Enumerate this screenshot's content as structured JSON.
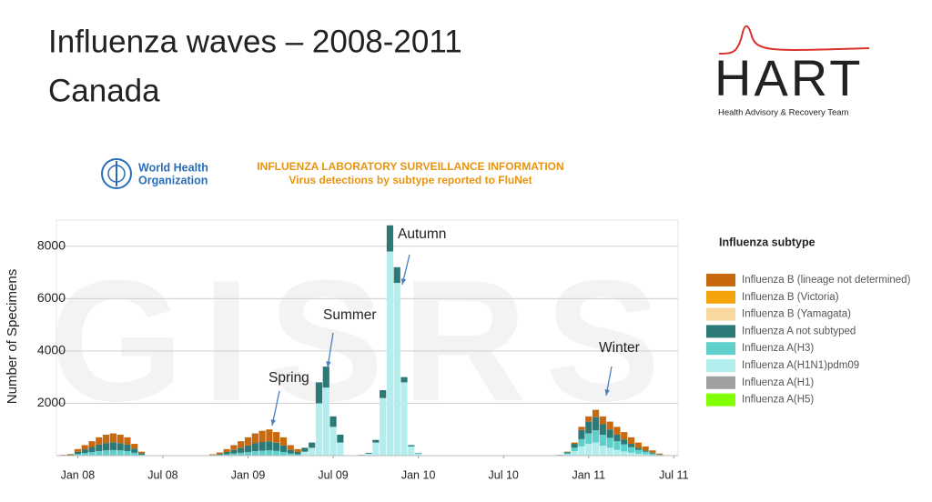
{
  "slide": {
    "title": [
      "Influenza waves – 2008-2011",
      "Canada"
    ],
    "logo": {
      "name": "HART",
      "tagline": "Health Advisory & Recovery Team"
    },
    "who_logo": [
      "World Health",
      "Organization"
    ],
    "watermark": "GISRS"
  },
  "chart_data": {
    "type": "stacked-bar",
    "title": "INFLUENZA LABORATORY SURVEILLANCE INFORMATION",
    "subtitle": "Virus detections by subtype reported to FluNet",
    "y_label": "Number of Specimens",
    "legend_title": "Influenza subtype",
    "annotations": [
      "Spring",
      "Summer",
      "Autumn",
      "Winter"
    ],
    "grid": true,
    "xlim": [
      -1.5,
      42.3
    ],
    "xticks": [
      {
        "value": 0,
        "label": "Jan 08"
      },
      {
        "value": 6,
        "label": "Jul 08"
      },
      {
        "value": 12,
        "label": "Jan 09"
      },
      {
        "value": 18,
        "label": "Jul 09"
      },
      {
        "value": 24,
        "label": "Jan 10"
      },
      {
        "value": 30,
        "label": "Jul 10"
      },
      {
        "value": 36,
        "label": "Jan 11"
      },
      {
        "value": 42,
        "label": "Jul 11"
      }
    ],
    "ylim": [
      0,
      9000
    ],
    "yticks": [
      2000,
      4000,
      6000,
      8000
    ],
    "x": [
      -1,
      -0.5,
      0,
      0.5,
      1,
      1.5,
      2,
      2.5,
      3,
      3.5,
      4,
      4.5,
      9.5,
      10,
      10.5,
      11,
      11.5,
      12,
      12.5,
      13,
      13.5,
      14,
      14.5,
      15,
      15.5,
      16,
      16.5,
      17,
      17.5,
      18,
      18.5,
      20,
      20.5,
      21,
      21.5,
      22,
      22.5,
      23,
      23.5,
      24,
      34,
      34.5,
      35,
      35.5,
      36,
      36.5,
      37,
      37.5,
      38,
      38.5,
      39,
      39.5,
      40,
      40.5,
      41,
      41.5
    ],
    "series": [
      {
        "name": "Influenza B (lineage not determined)",
        "color": "#c8690f",
        "values": [
          12,
          24,
          100,
          160,
          220,
          280,
          320,
          340,
          320,
          280,
          180,
          60,
          22,
          54,
          112,
          180,
          248,
          315,
          382,
          428,
          450,
          405,
          315,
          180,
          112,
          0,
          0,
          0,
          0,
          0,
          0,
          0,
          0,
          0,
          0,
          0,
          0,
          0,
          0,
          0,
          3,
          15,
          50,
          120,
          200,
          280,
          300,
          300,
          300,
          280,
          250,
          200,
          150,
          90,
          40,
          10
        ]
      },
      {
        "name": "Influenza B (Victoria)",
        "color": "#f5a30a",
        "values": [
          0,
          0,
          0,
          0,
          0,
          0,
          0,
          0,
          0,
          0,
          0,
          0,
          0,
          0,
          0,
          0,
          0,
          0,
          0,
          0,
          0,
          0,
          0,
          0,
          0,
          0,
          0,
          0,
          0,
          0,
          0,
          0,
          0,
          0,
          0,
          0,
          0,
          0,
          0,
          0,
          0,
          0,
          0,
          0,
          0,
          0,
          0,
          0,
          0,
          0,
          0,
          0,
          0,
          0,
          0,
          0
        ]
      },
      {
        "name": "Influenza B (Yamagata)",
        "color": "#f9d7a0",
        "values": [
          0,
          0,
          0,
          0,
          0,
          0,
          0,
          0,
          0,
          0,
          0,
          0,
          0,
          0,
          0,
          0,
          0,
          0,
          0,
          0,
          0,
          0,
          0,
          0,
          0,
          0,
          0,
          0,
          0,
          0,
          0,
          0,
          0,
          0,
          0,
          0,
          0,
          0,
          0,
          0,
          0,
          0,
          0,
          0,
          0,
          0,
          0,
          0,
          0,
          0,
          0,
          0,
          0,
          0,
          0,
          0
        ]
      },
      {
        "name": "Influenza A not subtyped",
        "color": "#2b7a78",
        "values": [
          10,
          21,
          88,
          140,
          193,
          245,
          280,
          298,
          280,
          245,
          158,
          53,
          18,
          42,
          88,
          140,
          192,
          245,
          298,
          332,
          350,
          315,
          245,
          140,
          88,
          150,
          200,
          800,
          800,
          400,
          300,
          10,
          30,
          100,
          300,
          1000,
          600,
          200,
          50,
          20,
          10,
          45,
          150,
          350,
          450,
          500,
          400,
          320,
          250,
          190,
          130,
          80,
          50,
          30,
          10,
          3
        ]
      },
      {
        "name": "Influenza A(H3)",
        "color": "#5ecfcb",
        "values": [
          8,
          15,
          62,
          100,
          137,
          175,
          200,
          212,
          200,
          175,
          112,
          37,
          10,
          24,
          50,
          80,
          110,
          140,
          170,
          190,
          200,
          180,
          140,
          80,
          50,
          0,
          0,
          0,
          0,
          0,
          0,
          0,
          0,
          0,
          0,
          0,
          0,
          0,
          0,
          0,
          7,
          40,
          130,
          280,
          400,
          470,
          420,
          380,
          330,
          270,
          210,
          150,
          100,
          60,
          22,
          5
        ]
      },
      {
        "name": "Influenza A(H1N1)pdm09",
        "color": "#b3eeee",
        "values": [
          0,
          0,
          0,
          0,
          0,
          0,
          0,
          0,
          0,
          0,
          0,
          0,
          0,
          0,
          0,
          0,
          0,
          0,
          0,
          0,
          0,
          0,
          0,
          0,
          0,
          150,
          300,
          2000,
          2600,
          1100,
          500,
          20,
          70,
          500,
          2200,
          7800,
          6600,
          2800,
          350,
          80,
          10,
          50,
          170,
          350,
          450,
          500,
          380,
          300,
          220,
          160,
          110,
          70,
          50,
          20,
          8,
          2
        ]
      },
      {
        "name": "Influenza A(H1)",
        "color": "#a0a0a0",
        "values": [
          0,
          0,
          0,
          0,
          0,
          0,
          0,
          0,
          0,
          0,
          0,
          0,
          0,
          0,
          0,
          0,
          0,
          0,
          0,
          0,
          0,
          0,
          0,
          0,
          0,
          0,
          0,
          0,
          0,
          0,
          0,
          0,
          0,
          0,
          0,
          0,
          0,
          0,
          0,
          0,
          0,
          0,
          0,
          0,
          0,
          0,
          0,
          0,
          0,
          0,
          0,
          0,
          0,
          0,
          0,
          0
        ]
      },
      {
        "name": "Influenza A(H5)",
        "color": "#80ff00",
        "values": [
          0,
          0,
          0,
          0,
          0,
          0,
          0,
          0,
          0,
          0,
          0,
          0,
          0,
          0,
          0,
          0,
          0,
          0,
          0,
          0,
          0,
          0,
          0,
          0,
          0,
          0,
          0,
          0,
          0,
          0,
          0,
          0,
          0,
          0,
          0,
          0,
          0,
          0,
          0,
          0,
          0,
          0,
          0,
          0,
          0,
          0,
          0,
          0,
          0,
          0,
          0,
          0,
          0,
          0,
          0,
          0
        ]
      }
    ]
  }
}
